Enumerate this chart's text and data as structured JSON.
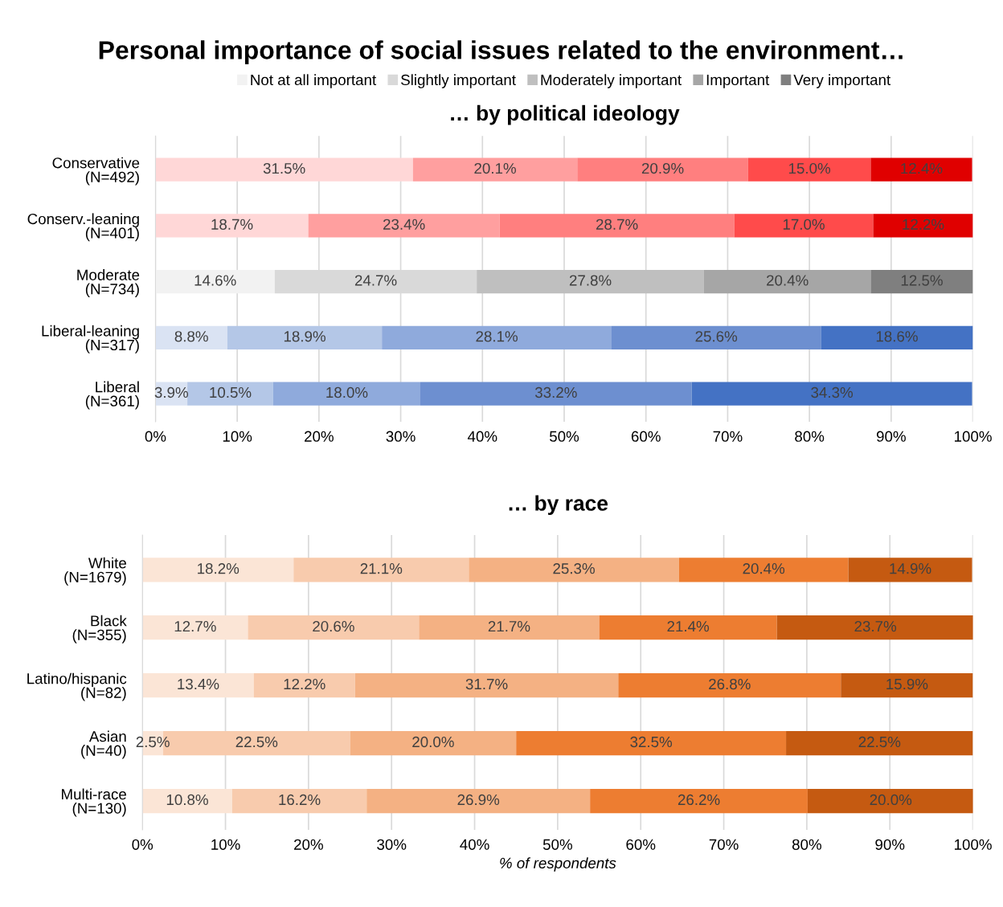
{
  "chart_data": [
    {
      "type": "bar",
      "orientation": "horizontal",
      "stacked": true,
      "title": "Personal importance of social issues related to the environment…",
      "subtitle": "… by political ideology",
      "categories": [
        "Conservative\n(N=492)",
        "Conserv.-leaning\n(N=401)",
        "Moderate\n(N=734)",
        "Liberal-leaning\n(N=317)",
        "Liberal\n(N=361)"
      ],
      "series": [
        {
          "name": "Not at all important",
          "color": "#f2f2f2",
          "colors": [
            "#ffd7d7",
            "#ffd7d7",
            "#f2f2f2",
            "#dae3f3",
            "#dae3f3"
          ],
          "values": [
            31.5,
            18.7,
            14.6,
            8.8,
            3.9
          ],
          "value_labels": [
            "31.5%",
            "18.7%",
            "14.6%",
            "8.8%",
            "3.9%"
          ]
        },
        {
          "name": "Slightly important",
          "color": "#d9d9d9",
          "colors": [
            "#ff9f9f",
            "#ff9f9f",
            "#d9d9d9",
            "#b4c7e7",
            "#b4c7e7"
          ],
          "values": [
            20.1,
            23.4,
            24.7,
            18.9,
            10.5
          ],
          "value_labels": [
            "20.1%",
            "23.4%",
            "24.7%",
            "18.9%",
            "10.5%"
          ]
        },
        {
          "name": "Moderately important",
          "color": "#bfbfbf",
          "colors": [
            "#ff7f7f",
            "#ff7f7f",
            "#bfbfbf",
            "#8faadc",
            "#8faadc"
          ],
          "values": [
            20.9,
            28.7,
            27.8,
            28.1,
            18.0
          ],
          "value_labels": [
            "20.9%",
            "28.7%",
            "27.8%",
            "28.1%",
            "18.0%"
          ]
        },
        {
          "name": "Important",
          "color": "#a6a6a6",
          "colors": [
            "#ff4b4b",
            "#ff4b4b",
            "#a6a6a6",
            "#6d8fd0",
            "#6d8fd0"
          ],
          "values": [
            15.0,
            17.0,
            20.4,
            25.6,
            33.2
          ],
          "value_labels": [
            "15.0%",
            "17.0%",
            "20.4%",
            "25.6%",
            "33.2%"
          ]
        },
        {
          "name": "Very important",
          "color": "#7f7f7f",
          "colors": [
            "#e00000",
            "#e00000",
            "#7f7f7f",
            "#4472c4",
            "#4472c4"
          ],
          "values": [
            12.4,
            12.2,
            12.5,
            18.6,
            34.3
          ],
          "value_labels": [
            "12.4%",
            "12.2%",
            "12.5%",
            "18.6%",
            "34.3%"
          ]
        }
      ],
      "xlim": [
        0,
        100
      ],
      "xticks": [
        {
          "value": 0,
          "label": "0%"
        },
        {
          "value": 10,
          "label": "10%"
        },
        {
          "value": 20,
          "label": "20%"
        },
        {
          "value": 30,
          "label": "30%"
        },
        {
          "value": 40,
          "label": "40%"
        },
        {
          "value": 50,
          "label": "50%"
        },
        {
          "value": 60,
          "label": "60%"
        },
        {
          "value": 70,
          "label": "70%"
        },
        {
          "value": 80,
          "label": "80%"
        },
        {
          "value": 90,
          "label": "90%"
        },
        {
          "value": 100,
          "label": "100%"
        }
      ],
      "grid": "x",
      "legend": "top"
    },
    {
      "type": "bar",
      "orientation": "horizontal",
      "stacked": true,
      "title": "… by race",
      "xlabel": "% of respondents",
      "categories": [
        "White\n(N=1679)",
        "Black\n(N=355)",
        "Latino/hispanic\n(N=82)",
        "Asian\n(N=40)",
        "Multi-race\n(N=130)"
      ],
      "series": [
        {
          "colors": [
            "#fbe5d6",
            "#fbe5d6",
            "#fbe5d6",
            "#fbe5d6",
            "#fbe5d6"
          ],
          "values": [
            18.2,
            12.7,
            13.4,
            2.5,
            10.8
          ],
          "value_labels": [
            "18.2%",
            "12.7%",
            "13.4%",
            "2.5%",
            "10.8%"
          ]
        },
        {
          "colors": [
            "#f8cbad",
            "#f8cbad",
            "#f8cbad",
            "#f8cbad",
            "#f8cbad"
          ],
          "values": [
            21.1,
            20.6,
            12.2,
            22.5,
            16.2
          ],
          "value_labels": [
            "21.1%",
            "20.6%",
            "12.2%",
            "22.5%",
            "16.2%"
          ]
        },
        {
          "colors": [
            "#f4b183",
            "#f4b183",
            "#f4b183",
            "#f4b183",
            "#f4b183"
          ],
          "values": [
            25.3,
            21.7,
            31.7,
            20.0,
            26.9
          ],
          "value_labels": [
            "25.3%",
            "21.7%",
            "31.7%",
            "20.0%",
            "26.9%"
          ]
        },
        {
          "colors": [
            "#ed7d31",
            "#ed7d31",
            "#ed7d31",
            "#ed7d31",
            "#ed7d31"
          ],
          "values": [
            20.4,
            21.4,
            26.8,
            32.5,
            26.2
          ],
          "value_labels": [
            "20.4%",
            "21.4%",
            "26.8%",
            "32.5%",
            "26.2%"
          ]
        },
        {
          "colors": [
            "#c55a11",
            "#c55a11",
            "#c55a11",
            "#c55a11",
            "#c55a11"
          ],
          "values": [
            14.9,
            23.7,
            15.9,
            22.5,
            20.0
          ],
          "value_labels": [
            "14.9%",
            "23.7%",
            "15.9%",
            "22.5%",
            "20.0%"
          ]
        }
      ],
      "xlim": [
        0,
        100
      ],
      "xticks": [
        {
          "value": 0,
          "label": "0%"
        },
        {
          "value": 10,
          "label": "10%"
        },
        {
          "value": 20,
          "label": "20%"
        },
        {
          "value": 30,
          "label": "30%"
        },
        {
          "value": 40,
          "label": "40%"
        },
        {
          "value": 50,
          "label": "50%"
        },
        {
          "value": 60,
          "label": "60%"
        },
        {
          "value": 70,
          "label": "70%"
        },
        {
          "value": 80,
          "label": "80%"
        },
        {
          "value": 90,
          "label": "90%"
        },
        {
          "value": 100,
          "label": "100%"
        }
      ],
      "grid": "x"
    }
  ]
}
